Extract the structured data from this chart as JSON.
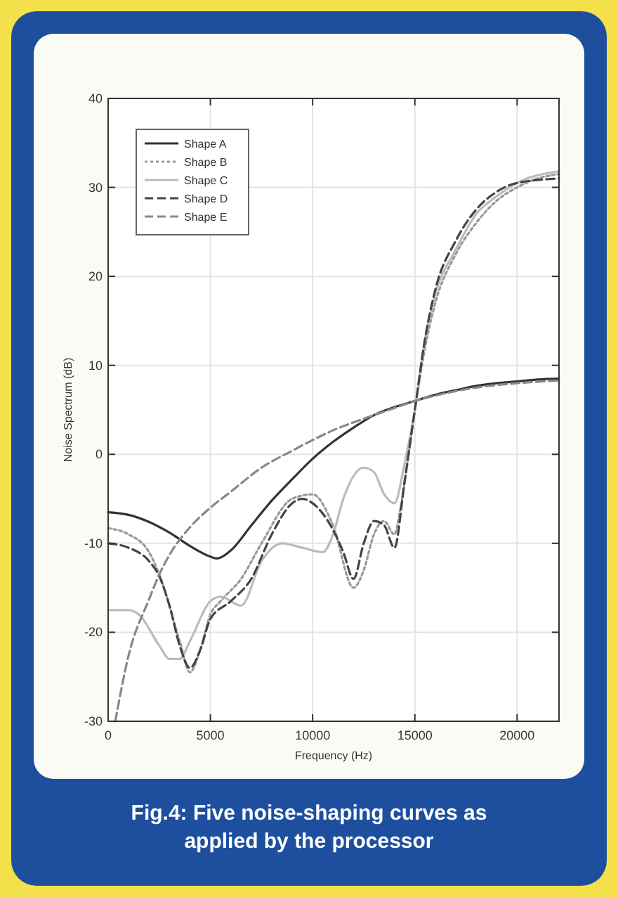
{
  "chart_data": {
    "type": "line",
    "title": "Fig.4: Five noise-shaping curves as applied by the processor",
    "xlabel": "Frequency (Hz)",
    "ylabel": "Noise Spectrum (dB)",
    "xlim": [
      0,
      22050
    ],
    "xticks": [
      0,
      5000,
      10000,
      15000,
      20000
    ],
    "ylim": [
      -30,
      40
    ],
    "yticks": [
      -30,
      -20,
      -10,
      0,
      10,
      20,
      30,
      40
    ],
    "grid": true,
    "legend": "top left",
    "series": [
      {
        "name": "Shape A",
        "color": "#333333",
        "line_style": "solid",
        "x": [
          0,
          1000,
          2000,
          3000,
          4000,
          5000,
          5300,
          6000,
          7000,
          8000,
          9000,
          10000,
          11000,
          12000,
          13000,
          14000,
          15000,
          16000,
          17000,
          18000,
          19000,
          20000,
          21000,
          22050
        ],
        "values": [
          -6.5,
          -6.8,
          -7.6,
          -8.8,
          -10.3,
          -11.5,
          -11.7,
          -10.8,
          -8,
          -5.2,
          -2.8,
          -0.5,
          1.4,
          3,
          4.4,
          5.3,
          6,
          6.7,
          7.2,
          7.7,
          8,
          8.2,
          8.4,
          8.5
        ]
      },
      {
        "name": "Shape B",
        "color": "#999999",
        "line_style": "dotted",
        "x": [
          0,
          1000,
          2000,
          2500,
          3500,
          4000,
          4500,
          5000,
          5500,
          6500,
          7500,
          9000,
          10000,
          11000,
          12000,
          12500,
          13000,
          13500,
          14000,
          14300,
          15000,
          15500,
          16000,
          17000,
          18000,
          19000,
          20000,
          21000,
          22050
        ],
        "values": [
          -8.3,
          -9,
          -11,
          -13.5,
          -21,
          -24.5,
          -22,
          -18,
          -16.5,
          -14,
          -10,
          -5,
          -4.5,
          -8,
          -15,
          -13,
          -9,
          -7.5,
          -9,
          -6,
          5,
          12,
          17,
          22.5,
          26,
          28.5,
          30,
          31,
          31.5
        ]
      },
      {
        "name": "Shape C",
        "color": "#bbbbbb",
        "line_style": "solid",
        "x": [
          0,
          1000,
          1500,
          2500,
          3000,
          3500,
          4000,
          5000,
          5500,
          6500,
          7500,
          8500,
          9500,
          10500,
          11000,
          11500,
          12500,
          13000,
          13500,
          14000,
          14500,
          15000,
          15500,
          16000,
          17000,
          18000,
          19000,
          20000,
          22050
        ],
        "values": [
          -17.5,
          -17.5,
          -18,
          -21.5,
          -23,
          -23,
          -21,
          -16.5,
          -16,
          -17,
          -12,
          -10,
          -10.5,
          -11,
          -9,
          -5,
          -1.5,
          -2,
          -4.5,
          -5.5,
          -1,
          5,
          13,
          18,
          23,
          27,
          29,
          30.5,
          31.8
        ]
      },
      {
        "name": "Shape D",
        "color": "#444444",
        "line_style": "dashed",
        "x": [
          0,
          1000,
          2000,
          2500,
          3000,
          3500,
          4000,
          4500,
          5000,
          6000,
          7000,
          8000,
          9000,
          9500,
          10000,
          11000,
          11500,
          12000,
          12500,
          13000,
          13500,
          14000,
          14500,
          15000,
          15500,
          16000,
          17000,
          18000,
          19000,
          20000,
          22050
        ],
        "values": [
          -10,
          -10.5,
          -12,
          -13.7,
          -17,
          -21.5,
          -24,
          -22,
          -18.5,
          -16.5,
          -14,
          -9,
          -5.5,
          -5,
          -5.5,
          -8.5,
          -11,
          -14,
          -10,
          -7.5,
          -8,
          -10.5,
          -3,
          5,
          13,
          18.5,
          24,
          27.5,
          29.5,
          30.5,
          31
        ]
      },
      {
        "name": "Shape E",
        "color": "#888888",
        "line_style": "dashed",
        "x": [
          350,
          1000,
          2000,
          2500,
          3000,
          4000,
          5000,
          6000,
          7500,
          9000,
          10000,
          11000,
          12500,
          14000,
          15000,
          16000,
          17000,
          18000,
          20000,
          22050
        ],
        "values": [
          -30,
          -22.6,
          -16.3,
          -13.5,
          -11.3,
          -8.2,
          -6,
          -4.2,
          -1.5,
          0.4,
          1.6,
          2.7,
          4,
          5.2,
          6,
          6.6,
          7.1,
          7.5,
          8,
          8.3
        ]
      }
    ]
  }
}
